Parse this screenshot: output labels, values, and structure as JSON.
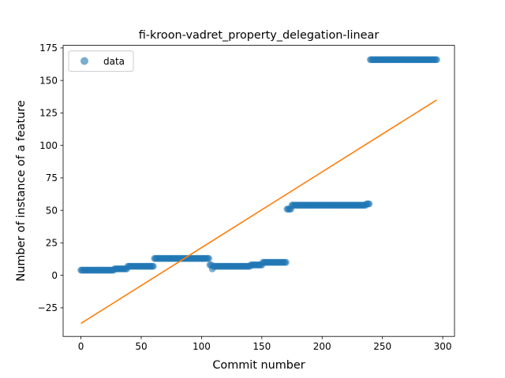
{
  "chart_data": {
    "type": "scatter",
    "title": "fi-kroon-vadret_property_delegation-linear",
    "xlabel": "Commit number",
    "ylabel": "Number of instance of a feature",
    "xlim": [
      -14.75,
      309.75
    ],
    "ylim": [
      -47,
      177
    ],
    "xticks": [
      0,
      50,
      100,
      150,
      200,
      250,
      300
    ],
    "yticks": [
      -25,
      0,
      25,
      50,
      75,
      100,
      125,
      150,
      175
    ],
    "xtick_labels": [
      "0",
      "50",
      "100",
      "150",
      "200",
      "250",
      "300"
    ],
    "ytick_labels": [
      "−25",
      "0",
      "25",
      "50",
      "75",
      "100",
      "125",
      "150",
      "175"
    ],
    "legend": {
      "position": "upper-left",
      "entries": [
        "data"
      ]
    },
    "colors": {
      "data": "#1f77b4",
      "fit": "#ff7f0e"
    },
    "series": [
      {
        "name": "data",
        "kind": "scatter",
        "segments": [
          {
            "x_start": 0,
            "x_end": 27,
            "y": 4
          },
          {
            "x_start": 28,
            "x_end": 38,
            "y": 5
          },
          {
            "x_start": 39,
            "x_end": 60,
            "y": 7
          },
          {
            "x_start": 61,
            "x_end": 106,
            "y": 13
          },
          {
            "x_start": 107,
            "x_end": 108,
            "y": 8
          },
          {
            "x_start": 109,
            "x_end": 109,
            "y": 5
          },
          {
            "x_start": 110,
            "x_end": 140,
            "y": 7
          },
          {
            "x_start": 141,
            "x_end": 150,
            "y": 8
          },
          {
            "x_start": 151,
            "x_end": 170,
            "y": 10
          },
          {
            "x_start": 171,
            "x_end": 174,
            "y": 51
          },
          {
            "x_start": 175,
            "x_end": 236,
            "y": 54
          },
          {
            "x_start": 237,
            "x_end": 239,
            "y": 55
          },
          {
            "x_start": 240,
            "x_end": 295,
            "y": 166
          }
        ]
      },
      {
        "name": "",
        "kind": "line",
        "x": [
          0,
          295
        ],
        "y": [
          -37,
          135
        ]
      }
    ]
  }
}
